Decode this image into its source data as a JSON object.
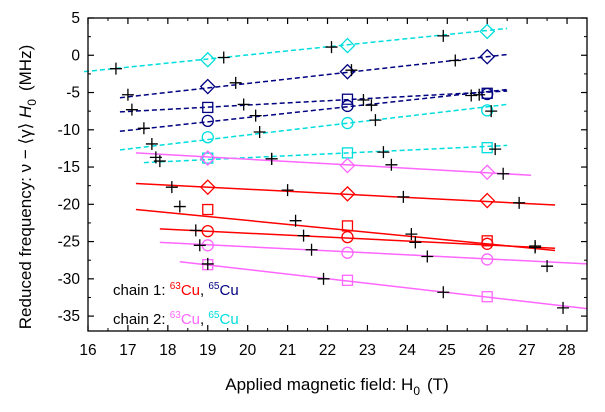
{
  "chart_data": {
    "type": "scatter",
    "xlabel": "Applied magnetic field: H",
    "xlabel_sub": "0",
    "xlabel_unit": "(T)",
    "ylabel_prefix": "Reduced frequency:  ν − ⟨γ⟩ ",
    "ylabel_var": "H",
    "ylabel_sub": "0",
    "ylabel_unit": "(MHz)",
    "xlim": [
      16,
      28.5
    ],
    "ylim": [
      -37,
      5
    ],
    "xticks": [
      16,
      17,
      18,
      19,
      20,
      21,
      22,
      23,
      24,
      25,
      26,
      27,
      28
    ],
    "yticks": [
      5,
      0,
      -5,
      -10,
      -15,
      -20,
      -25,
      -30,
      -35
    ],
    "legend": {
      "placement": "bottom-left",
      "rows": [
        {
          "prefix": "chain 1: ",
          "a_sup": "63",
          "a_text": "Cu",
          "sep": ", ",
          "b_sup": "65",
          "b_text": "Cu",
          "a_color": "#ff0000",
          "b_color": "#000080"
        },
        {
          "prefix": "chain 2: ",
          "a_sup": "63",
          "a_text": "Cu",
          "sep": ", ",
          "b_sup": "65",
          "b_text": "Cu",
          "a_color": "#ff66ff",
          "b_color": "#00dddd"
        }
      ]
    },
    "fit_lines": [
      {
        "color": "#00dddd",
        "dash": true,
        "x": [
          15.9,
          26.5
        ],
        "y": [
          -2.2,
          3.6
        ]
      },
      {
        "color": "#000080",
        "dash": true,
        "x": [
          16.8,
          26.5
        ],
        "y": [
          -5.7,
          0.1
        ]
      },
      {
        "color": "#000080",
        "dash": true,
        "x": [
          16.8,
          26.5
        ],
        "y": [
          -7.6,
          -4.8
        ]
      },
      {
        "color": "#000080",
        "dash": true,
        "x": [
          16.8,
          26.5
        ],
        "y": [
          -10.2,
          -4.6
        ]
      },
      {
        "color": "#00dddd",
        "dash": true,
        "x": [
          16.8,
          26.5
        ],
        "y": [
          -12.7,
          -6.6
        ]
      },
      {
        "color": "#00dddd",
        "dash": true,
        "x": [
          17.4,
          26.5
        ],
        "y": [
          -14.4,
          -12.1
        ]
      },
      {
        "color": "#ff66ff",
        "dash": false,
        "x": [
          17.2,
          27.1
        ],
        "y": [
          -13.1,
          -16.1
        ]
      },
      {
        "color": "#ff0000",
        "dash": false,
        "x": [
          17.2,
          27.7
        ],
        "y": [
          -17.2,
          -20.1
        ]
      },
      {
        "color": "#ff0000",
        "dash": false,
        "x": [
          17.2,
          27.7
        ],
        "y": [
          -20.7,
          -26.2
        ]
      },
      {
        "color": "#ff0000",
        "dash": false,
        "x": [
          17.8,
          27.7
        ],
        "y": [
          -23.3,
          -25.9
        ]
      },
      {
        "color": "#ff66ff",
        "dash": false,
        "x": [
          17.8,
          28.5
        ],
        "y": [
          -25.1,
          -28.0
        ]
      },
      {
        "color": "#ff66ff",
        "dash": false,
        "x": [
          18.3,
          28.5
        ],
        "y": [
          -27.7,
          -34.0
        ]
      }
    ],
    "series": [
      {
        "marker": "diamond",
        "color": "#00dddd",
        "points": [
          [
            19.0,
            -0.6
          ],
          [
            22.5,
            1.3
          ],
          [
            26.0,
            3.2
          ]
        ]
      },
      {
        "marker": "diamond",
        "color": "#000080",
        "points": [
          [
            19.0,
            -4.2
          ],
          [
            22.5,
            -2.2
          ],
          [
            26.0,
            -0.2
          ]
        ]
      },
      {
        "marker": "square",
        "color": "#000080",
        "points": [
          [
            19.0,
            -7.0
          ],
          [
            22.5,
            -5.9
          ],
          [
            26.0,
            -5.1
          ]
        ]
      },
      {
        "marker": "circle",
        "color": "#000080",
        "points": [
          [
            19.0,
            -8.8
          ],
          [
            22.5,
            -6.8
          ],
          [
            26.0,
            -5.2
          ]
        ]
      },
      {
        "marker": "circle",
        "color": "#00dddd",
        "points": [
          [
            19.0,
            -11.0
          ],
          [
            22.5,
            -9.1
          ],
          [
            26.0,
            -7.4
          ]
        ]
      },
      {
        "marker": "square",
        "color": "#00dddd",
        "points": [
          [
            19.0,
            -13.8
          ],
          [
            22.5,
            -13.1
          ],
          [
            26.0,
            -12.4
          ]
        ]
      },
      {
        "marker": "diamond",
        "color": "#ff66ff",
        "points": [
          [
            19.0,
            -13.8
          ],
          [
            22.5,
            -14.8
          ],
          [
            26.0,
            -15.7
          ]
        ]
      },
      {
        "marker": "diamond",
        "color": "#ff0000",
        "points": [
          [
            19.0,
            -17.7
          ],
          [
            22.5,
            -18.6
          ],
          [
            26.0,
            -19.5
          ]
        ]
      },
      {
        "marker": "square",
        "color": "#ff0000",
        "points": [
          [
            19.0,
            -20.7
          ],
          [
            22.5,
            -22.9
          ],
          [
            26.0,
            -24.9
          ]
        ]
      },
      {
        "marker": "circle",
        "color": "#ff0000",
        "points": [
          [
            19.0,
            -23.6
          ],
          [
            22.5,
            -24.4
          ],
          [
            26.0,
            -25.3
          ]
        ]
      },
      {
        "marker": "circle",
        "color": "#ff66ff",
        "points": [
          [
            19.0,
            -25.5
          ],
          [
            22.5,
            -26.5
          ],
          [
            26.0,
            -27.4
          ]
        ]
      },
      {
        "marker": "square",
        "color": "#ff66ff",
        "points": [
          [
            19.0,
            -28.1
          ],
          [
            22.5,
            -30.2
          ],
          [
            26.0,
            -32.4
          ]
        ]
      }
    ],
    "cross_points": [
      [
        16.7,
        -1.8
      ],
      [
        19.4,
        -0.3
      ],
      [
        22.1,
        1.1
      ],
      [
        24.9,
        2.6
      ],
      [
        17.0,
        -5.3
      ],
      [
        19.7,
        -3.7
      ],
      [
        22.6,
        -2.0
      ],
      [
        25.2,
        -0.7
      ],
      [
        17.1,
        -7.3
      ],
      [
        19.9,
        -6.6
      ],
      [
        22.9,
        -6.0
      ],
      [
        25.6,
        -5.4
      ],
      [
        17.4,
        -9.8
      ],
      [
        20.2,
        -8.1
      ],
      [
        23.1,
        -6.7
      ],
      [
        25.8,
        -5.3
      ],
      [
        17.6,
        -11.9
      ],
      [
        20.3,
        -10.3
      ],
      [
        23.2,
        -8.7
      ],
      [
        26.1,
        -7.5
      ],
      [
        17.7,
        -13.7
      ],
      [
        20.6,
        -13.9
      ],
      [
        23.4,
        -13.0
      ],
      [
        26.2,
        -12.6
      ],
      [
        17.8,
        -14.2
      ],
      [
        20.6,
        -13.9
      ],
      [
        23.6,
        -14.7
      ],
      [
        26.4,
        -15.9
      ],
      [
        18.1,
        -17.7
      ],
      [
        21.0,
        -18.1
      ],
      [
        23.9,
        -19.0
      ],
      [
        26.8,
        -19.8
      ],
      [
        18.3,
        -20.3
      ],
      [
        21.2,
        -22.2
      ],
      [
        24.1,
        -24.0
      ],
      [
        27.2,
        -25.6
      ],
      [
        18.7,
        -23.5
      ],
      [
        21.4,
        -24.2
      ],
      [
        24.2,
        -25.1
      ],
      [
        27.2,
        -25.8
      ],
      [
        18.8,
        -25.5
      ],
      [
        21.6,
        -26.1
      ],
      [
        24.5,
        -27.0
      ],
      [
        27.5,
        -28.3
      ],
      [
        19.0,
        -28.0
      ],
      [
        21.9,
        -30.0
      ],
      [
        24.9,
        -31.8
      ],
      [
        27.9,
        -33.9
      ]
    ]
  }
}
